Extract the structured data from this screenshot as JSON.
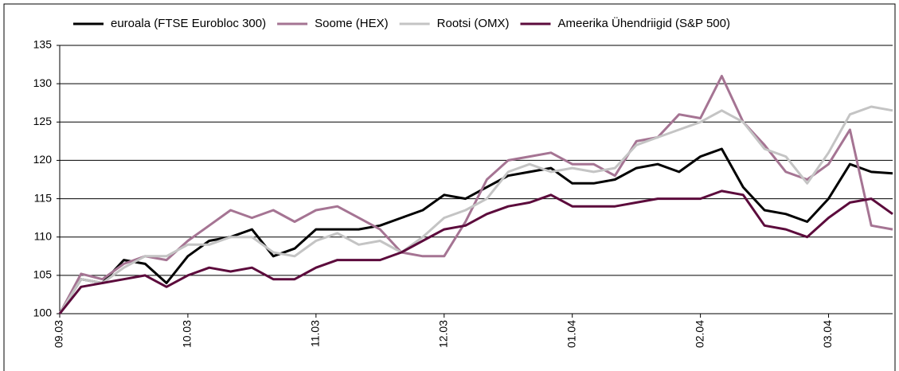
{
  "chart_data": {
    "type": "line",
    "categories": [
      "09.03",
      null,
      null,
      null,
      null,
      null,
      "10.03",
      null,
      null,
      null,
      null,
      null,
      "11.03",
      null,
      null,
      null,
      null,
      null,
      "12.03",
      null,
      null,
      null,
      null,
      null,
      "01.04",
      null,
      null,
      null,
      null,
      null,
      "02.04",
      null,
      null,
      null,
      null,
      null,
      "03.04",
      null,
      null,
      null
    ],
    "series": [
      {
        "name": "euroala (FTSE Eurobloc 300)",
        "color": "#000000",
        "values": [
          100,
          104.5,
          104,
          107,
          106.5,
          104,
          107.5,
          109.5,
          110,
          111,
          107.5,
          108.5,
          111,
          111,
          111,
          111.5,
          112.5,
          113.5,
          115.5,
          115,
          116.5,
          118,
          118.5,
          119,
          117,
          117,
          117.5,
          119,
          119.5,
          118.5,
          120.5,
          121.5,
          116.5,
          113.5,
          113,
          112,
          115,
          119.5,
          118.5,
          118.3
        ]
      },
      {
        "name": "Soome (HEX)",
        "color": "#a57493",
        "values": [
          100,
          105.2,
          104.5,
          106.5,
          107.5,
          107,
          109.5,
          111.5,
          113.5,
          112.5,
          113.5,
          112,
          113.5,
          114,
          112.5,
          111,
          108,
          107.5,
          107.5,
          112,
          117.5,
          120,
          120.5,
          121,
          119.5,
          119.5,
          118,
          122.5,
          123,
          126,
          125.5,
          131,
          125,
          122,
          118.5,
          117.5,
          119.5,
          124,
          111.5,
          111
        ]
      },
      {
        "name": "Rootsi (OMX)",
        "color": "#c4c4c4",
        "values": [
          100,
          104.5,
          104,
          106,
          107.5,
          107.5,
          109,
          109,
          110,
          110,
          108,
          107.5,
          109.5,
          110.5,
          109,
          109.5,
          108,
          110,
          112.5,
          113.5,
          115,
          118.5,
          119.5,
          118.5,
          119,
          118.5,
          119,
          122,
          123,
          124,
          125,
          126.5,
          125,
          121.5,
          120.5,
          117,
          121,
          126,
          127,
          126.5
        ]
      },
      {
        "name": "Ameerika Ühendriigid (S&P 500)",
        "color": "#5c0b3c",
        "values": [
          100,
          103.5,
          104,
          104.5,
          105,
          103.5,
          105,
          106,
          105.5,
          106,
          104.5,
          104.5,
          106,
          107,
          107,
          107,
          108,
          109.5,
          111,
          111.5,
          113,
          114,
          114.5,
          115.5,
          114,
          114,
          114,
          114.5,
          115,
          115,
          115,
          116,
          115.5,
          111.5,
          111,
          110,
          112.5,
          114.5,
          115,
          113
        ]
      }
    ],
    "ylim": [
      100,
      135
    ],
    "yticks": [
      100,
      105,
      110,
      115,
      120,
      125,
      130,
      135
    ],
    "grid": true
  }
}
